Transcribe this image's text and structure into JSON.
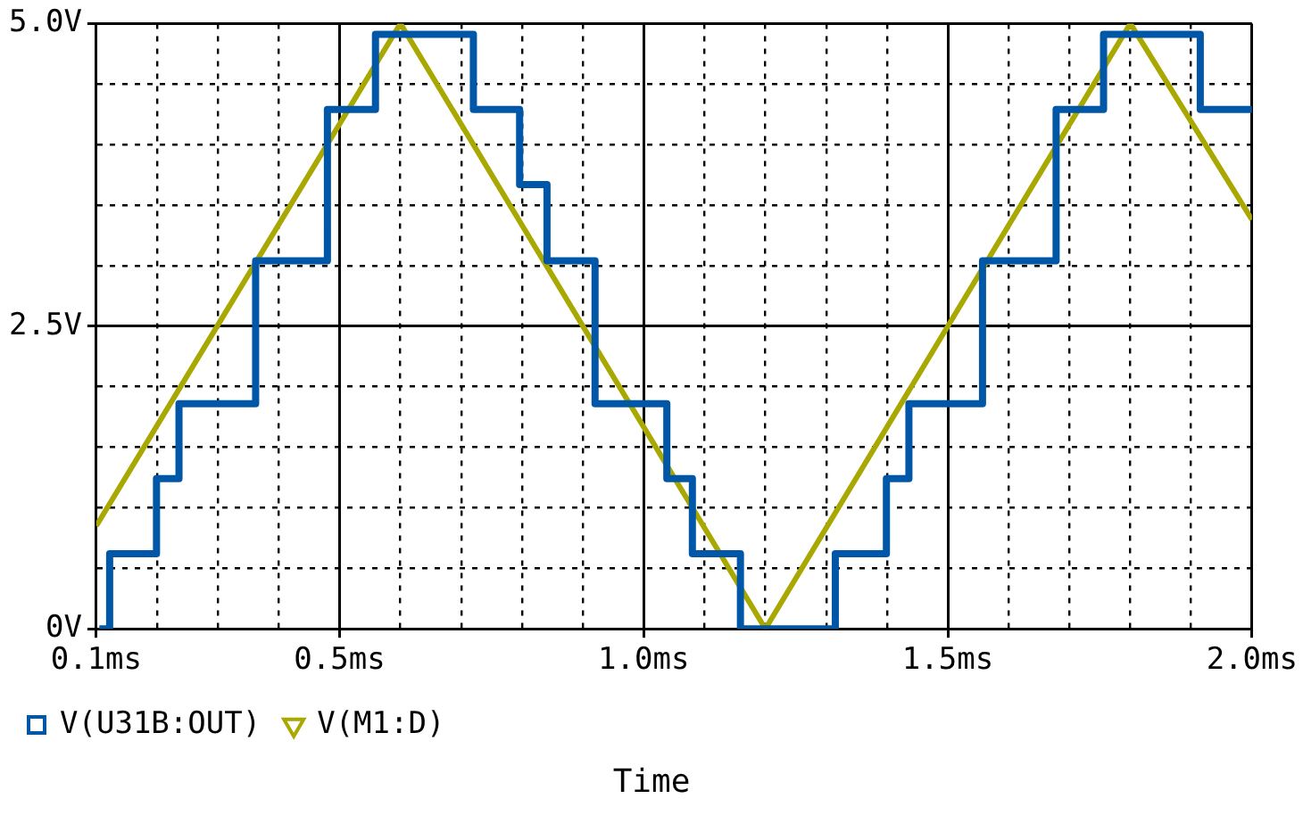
{
  "chart_data": {
    "type": "line",
    "xlabel": "Time",
    "xlim": [
      0.1,
      2.0
    ],
    "xticks": [
      {
        "value": 0.1,
        "label": "0.1ms"
      },
      {
        "value": 0.2,
        "label": null
      },
      {
        "value": 0.3,
        "label": null
      },
      {
        "value": 0.4,
        "label": null
      },
      {
        "value": 0.5,
        "label": "0.5ms"
      },
      {
        "value": 0.6,
        "label": null
      },
      {
        "value": 0.7,
        "label": null
      },
      {
        "value": 0.8,
        "label": null
      },
      {
        "value": 0.9,
        "label": null
      },
      {
        "value": 1.0,
        "label": "1.0ms"
      },
      {
        "value": 1.1,
        "label": null
      },
      {
        "value": 1.2,
        "label": null
      },
      {
        "value": 1.3,
        "label": null
      },
      {
        "value": 1.4,
        "label": null
      },
      {
        "value": 1.5,
        "label": "1.5ms"
      },
      {
        "value": 1.6,
        "label": null
      },
      {
        "value": 1.7,
        "label": null
      },
      {
        "value": 1.8,
        "label": null
      },
      {
        "value": 1.9,
        "label": null
      },
      {
        "value": 2.0,
        "label": "2.0ms"
      }
    ],
    "ylim": [
      0,
      5.0
    ],
    "yticks": [
      {
        "value": 0,
        "label": "0V"
      },
      {
        "value": 0.5,
        "label": null
      },
      {
        "value": 1.0,
        "label": null
      },
      {
        "value": 1.5,
        "label": null
      },
      {
        "value": 2.0,
        "label": null
      },
      {
        "value": 2.5,
        "label": "2.5V"
      },
      {
        "value": 3.0,
        "label": null
      },
      {
        "value": 3.5,
        "label": null
      },
      {
        "value": 4.0,
        "label": null
      },
      {
        "value": 4.5,
        "label": null
      },
      {
        "value": 5.0,
        "label": "5.0V"
      }
    ],
    "grid": true,
    "legend": "bottom",
    "series": [
      {
        "name": "V(U31B:OUT)",
        "type": "step",
        "color": "#0057a8",
        "x": [
          0.105,
          0.122,
          0.199,
          0.236,
          0.362,
          0.48,
          0.559,
          0.72,
          0.796,
          0.841,
          0.92,
          1.038,
          1.08,
          1.159,
          1.315,
          1.399,
          1.436,
          1.557,
          1.678,
          1.756,
          1.915,
          2.0
        ],
        "values": [
          0,
          0.62,
          1.24,
          1.86,
          3.04,
          4.29,
          4.91,
          4.29,
          3.67,
          3.04,
          1.86,
          1.24,
          0.62,
          0,
          0.62,
          1.24,
          1.86,
          3.04,
          4.29,
          4.91,
          4.29,
          4.29
        ]
      },
      {
        "name": "V(M1:D)",
        "color": "#a8a800",
        "x": [
          0.1,
          0.6,
          1.2,
          1.8,
          2.0
        ],
        "values": [
          0.85,
          5.0,
          0,
          5.0,
          3.38
        ]
      }
    ]
  }
}
